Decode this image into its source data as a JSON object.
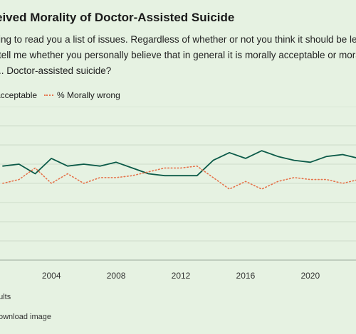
{
  "header": {
    "title": "eived Morality of Doctor-Assisted Suicide",
    "question_lines": [
      "ing to read you a list of issues. Regardless of whether or not you think it should be legal,",
      "tell me whether you personally believe that in general it is morally acceptable or morally",
      ".. Doctor-assisted suicide?"
    ]
  },
  "footer": {
    "note": "dults",
    "download": "ownload image"
  },
  "colors": {
    "background": "#e6f2e2",
    "acceptable": "#0b5a48",
    "wrong": "#e5734b",
    "grid": "#cfdccb"
  },
  "chart_data": {
    "type": "line",
    "title": "eived Morality of Doctor-Assisted Suicide",
    "xlabel": "",
    "ylabel": "",
    "x_ticks": [
      "2004",
      "2008",
      "2012",
      "2016",
      "2020"
    ],
    "x_range": [
      2001,
      2023
    ],
    "y_range": [
      0,
      80
    ],
    "grid": true,
    "legend_position": "top-left",
    "x": [
      2001,
      2002,
      2003,
      2004,
      2005,
      2006,
      2007,
      2008,
      2009,
      2010,
      2011,
      2012,
      2013,
      2014,
      2015,
      2016,
      2017,
      2018,
      2019,
      2020,
      2021,
      2022,
      2023
    ],
    "series": [
      {
        "name": "acceptable",
        "values": [
          49,
          50,
          45,
          53,
          49,
          50,
          49,
          51,
          48,
          45,
          44,
          44,
          44,
          52,
          56,
          53,
          57,
          54,
          52,
          51,
          54,
          55,
          53
        ]
      },
      {
        "name": "% Morally wrong",
        "values": [
          40,
          42,
          48,
          40,
          45,
          40,
          43,
          43,
          44,
          46,
          48,
          48,
          49,
          43,
          37,
          41,
          37,
          41,
          43,
          42,
          42,
          40,
          42
        ]
      }
    ]
  }
}
